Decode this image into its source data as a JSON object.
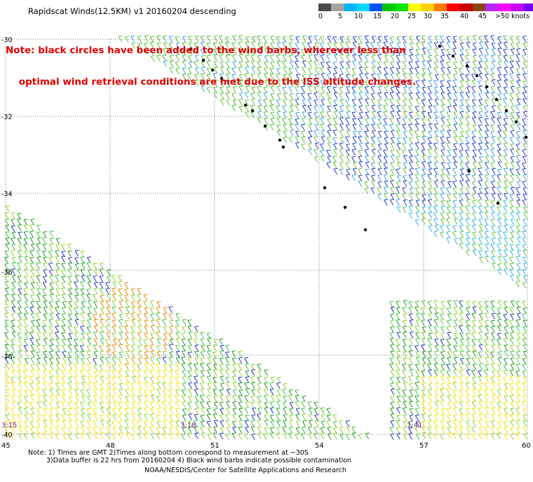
{
  "header": {
    "title": "Rapidscat Winds(12.5KM) v1 20160204 descending"
  },
  "note": {
    "line1": "Note: black circles have been added to the wind barbs, wherever less than",
    "line2": "    optimal wind retrieval conditions are met due to the ISS altitude changes."
  },
  "colorbar": {
    "colors": [
      "#4b4b4b",
      "#a3a3a3",
      "#00b4ff",
      "#00d7ff",
      "#0050ff",
      "#00c800",
      "#00e600",
      "#ffff00",
      "#ffd200",
      "#ff7800",
      "#ff0000",
      "#c80000",
      "#8c4614",
      "#b428ff",
      "#ff00ff",
      "#c800ff",
      "#7800ff",
      "#3c00c8"
    ],
    "ticks": [
      "0",
      "5",
      "10",
      "15",
      "20",
      "25",
      "30",
      "35",
      "40",
      "45",
      ">50 knots"
    ]
  },
  "map": {
    "lat_labels": [
      "-30",
      "-32",
      "-34",
      "-36",
      "-38",
      "-40"
    ],
    "lon_labels": [
      "45",
      "48",
      "51",
      "54",
      "57",
      "60"
    ],
    "time_labels": [
      "3:15",
      "3:18",
      "1:41"
    ],
    "time_label_color": "#7a1f8f"
  },
  "footer": {
    "line1": "Note: 1) Times are GMT 2)Times along bottom correspond to measurement at ~30S",
    "line2": "3)Data buffer is 22 hrs from 20160204 4) Black wind barbs indicate possible contamination",
    "line3": "NOAA/NESDIS/Center for Satellite Applications and Research"
  }
}
